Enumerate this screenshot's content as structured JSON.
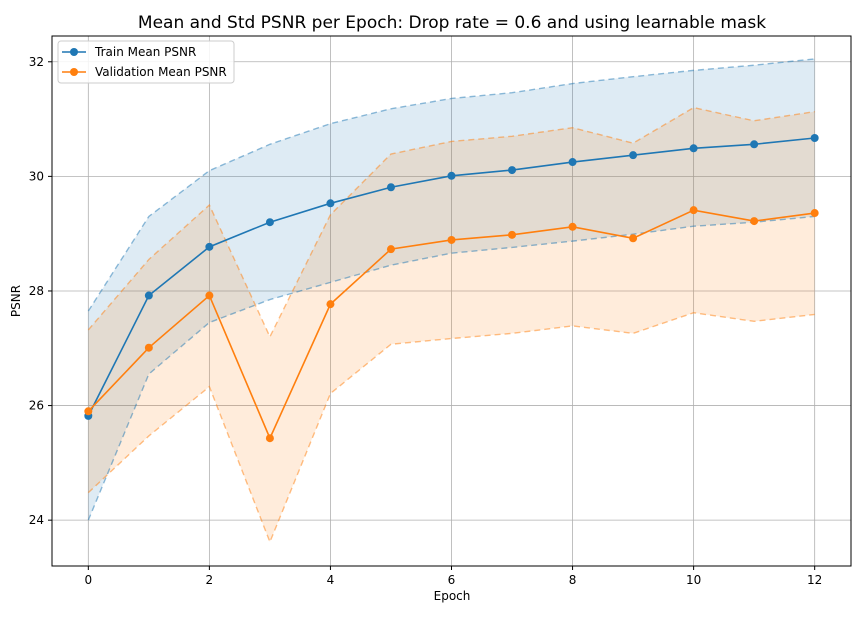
{
  "chart_data": {
    "type": "line",
    "title": "Mean and Std PSNR per Epoch: Drop rate = 0.6 and using learnable mask",
    "xlabel": "Epoch",
    "ylabel": "PSNR",
    "xlim": [
      -0.6,
      12.6
    ],
    "ylim": [
      23.2,
      32.45
    ],
    "xticks": [
      0,
      2,
      4,
      6,
      8,
      10,
      12
    ],
    "yticks": [
      24,
      26,
      28,
      30,
      32
    ],
    "grid": true,
    "legend_position": "upper left",
    "x": [
      0,
      1,
      2,
      3,
      4,
      5,
      6,
      7,
      8,
      9,
      10,
      11,
      12
    ],
    "series": [
      {
        "name": "Train Mean PSNR",
        "color": "#1f77b4",
        "mean": [
          25.82,
          27.92,
          28.77,
          29.2,
          29.53,
          29.81,
          30.01,
          30.11,
          30.25,
          30.37,
          30.49,
          30.56,
          30.67
        ],
        "upper": [
          27.65,
          29.3,
          30.1,
          30.56,
          30.92,
          31.18,
          31.36,
          31.46,
          31.62,
          31.74,
          31.85,
          31.94,
          32.05
        ],
        "lower": [
          24.0,
          26.55,
          27.45,
          27.85,
          28.15,
          28.45,
          28.66,
          28.76,
          28.87,
          28.99,
          29.13,
          29.2,
          29.3
        ]
      },
      {
        "name": "Validation Mean PSNR",
        "color": "#ff7f0e",
        "mean": [
          25.9,
          27.01,
          27.92,
          25.43,
          27.77,
          28.73,
          28.89,
          28.98,
          29.12,
          28.92,
          29.41,
          29.22,
          29.36
        ],
        "upper": [
          27.32,
          28.55,
          29.5,
          27.2,
          29.33,
          30.39,
          30.61,
          30.7,
          30.85,
          30.58,
          31.2,
          30.97,
          31.13
        ],
        "lower": [
          24.48,
          25.47,
          26.33,
          23.62,
          26.21,
          27.07,
          27.17,
          27.26,
          27.39,
          27.26,
          27.62,
          27.47,
          27.59
        ]
      }
    ]
  }
}
